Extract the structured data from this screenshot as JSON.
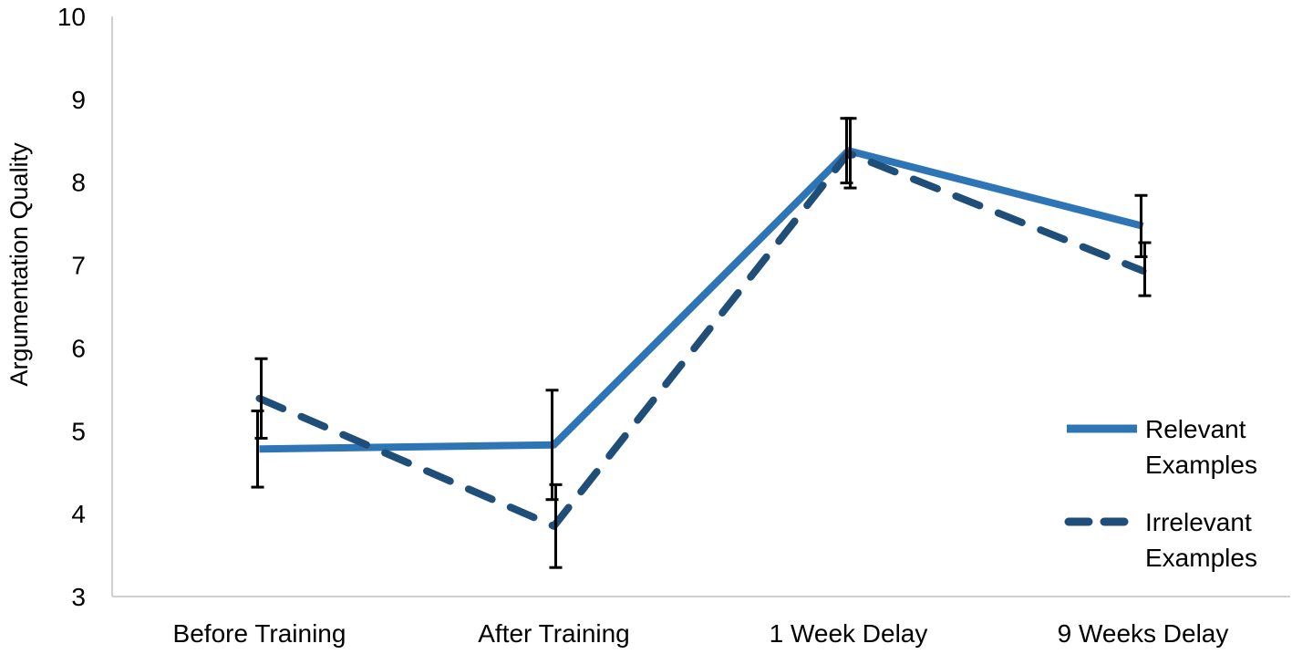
{
  "chart_data": {
    "type": "line",
    "ylabel": "Argumentation Quality",
    "ylim": [
      3,
      10
    ],
    "yticks": [
      3,
      4,
      5,
      6,
      7,
      8,
      9,
      10
    ],
    "categories": [
      "Before Training",
      "After Training",
      "1 Week Delay",
      "9 Weeks Delay"
    ],
    "grid": false,
    "legend_position": "right",
    "series": [
      {
        "name": "Relevant Examples",
        "legend_lines": [
          "Relevant",
          "Examples"
        ],
        "style": "solid",
        "color": "#2e75b6",
        "values": [
          4.78,
          4.83,
          8.38,
          7.47
        ],
        "error_bars": [
          [
            4.32,
            5.24
          ],
          [
            4.17,
            5.49
          ],
          [
            7.99,
            8.77
          ],
          [
            7.1,
            7.84
          ]
        ]
      },
      {
        "name": "Irrelevant Examples",
        "legend_lines": [
          "Irrelevant",
          "Examples"
        ],
        "style": "dashed",
        "color": "#1f4e79",
        "values": [
          5.39,
          3.85,
          8.35,
          6.93
        ],
        "error_bars": [
          [
            4.91,
            5.87
          ],
          [
            3.35,
            4.35
          ],
          [
            7.93,
            8.77
          ],
          [
            6.63,
            7.27
          ]
        ]
      }
    ]
  }
}
